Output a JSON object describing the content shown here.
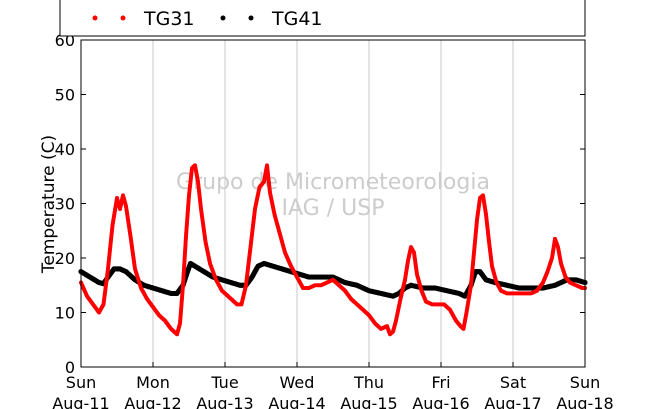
{
  "chart_data": {
    "type": "scatter",
    "ylabel": "Temperature (C)",
    "ylim": [
      0,
      60
    ],
    "yticks": [
      0,
      10,
      20,
      30,
      40,
      50,
      60
    ],
    "xlim": [
      "2013-08-11",
      "2013-08-18"
    ],
    "xticks": [
      {
        "date": "2013-08-11",
        "day": "Sun",
        "label": "Aug-11"
      },
      {
        "date": "2013-08-12",
        "day": "Mon",
        "label": "Aug-12"
      },
      {
        "date": "2013-08-13",
        "day": "Tue",
        "label": "Aug-13"
      },
      {
        "date": "2013-08-14",
        "day": "Wed",
        "label": "Aug-14"
      },
      {
        "date": "2013-08-15",
        "day": "Thu",
        "label": "Aug-15"
      },
      {
        "date": "2013-08-16",
        "day": "Fri",
        "label": "Aug-16"
      },
      {
        "date": "2013-08-17",
        "day": "Sat",
        "label": "Aug-17"
      },
      {
        "date": "2013-08-18",
        "day": "Sun",
        "label": "Aug-18"
      }
    ],
    "grid": "vertical",
    "legend_position": "top",
    "watermark": [
      "Grupo de Micrometeorologia",
      "IAG / USP"
    ],
    "series": [
      {
        "name": "TG31",
        "color": "#ff0000",
        "points": [
          [
            "2013-08-11T00:00",
            15.5
          ],
          [
            "2013-08-11T02:00",
            13.0
          ],
          [
            "2013-08-11T04:00",
            11.5
          ],
          [
            "2013-08-11T06:00",
            10.0
          ],
          [
            "2013-08-11T07:30",
            11.5
          ],
          [
            "2013-08-11T09:00",
            18.0
          ],
          [
            "2013-08-11T10:30",
            26.0
          ],
          [
            "2013-08-11T12:00",
            31.0
          ],
          [
            "2013-08-11T13:00",
            29.0
          ],
          [
            "2013-08-11T14:00",
            31.5
          ],
          [
            "2013-08-11T15:00",
            29.5
          ],
          [
            "2013-08-11T16:30",
            24.0
          ],
          [
            "2013-08-11T18:00",
            18.0
          ],
          [
            "2013-08-11T20:00",
            14.5
          ],
          [
            "2013-08-11T22:00",
            12.5
          ],
          [
            "2013-08-12T00:00",
            11.0
          ],
          [
            "2013-08-12T02:00",
            9.5
          ],
          [
            "2013-08-12T04:00",
            8.5
          ],
          [
            "2013-08-12T06:00",
            7.0
          ],
          [
            "2013-08-12T08:00",
            6.0
          ],
          [
            "2013-08-12T09:00",
            8.0
          ],
          [
            "2013-08-12T10:00",
            15.0
          ],
          [
            "2013-08-12T11:00",
            24.0
          ],
          [
            "2013-08-12T12:00",
            31.5
          ],
          [
            "2013-08-12T13:00",
            36.5
          ],
          [
            "2013-08-12T14:00",
            37.0
          ],
          [
            "2013-08-12T15:00",
            34.0
          ],
          [
            "2013-08-12T16:00",
            29.0
          ],
          [
            "2013-08-12T17:30",
            23.0
          ],
          [
            "2013-08-12T19:00",
            19.0
          ],
          [
            "2013-08-12T21:00",
            16.0
          ],
          [
            "2013-08-12T23:00",
            14.0
          ],
          [
            "2013-08-13T02:00",
            12.5
          ],
          [
            "2013-08-13T04:00",
            11.5
          ],
          [
            "2013-08-13T05:30",
            11.5
          ],
          [
            "2013-08-13T07:00",
            15.0
          ],
          [
            "2013-08-13T08:30",
            22.0
          ],
          [
            "2013-08-13T10:00",
            29.0
          ],
          [
            "2013-08-13T11:30",
            33.0
          ],
          [
            "2013-08-13T13:00",
            34.0
          ],
          [
            "2013-08-13T14:00",
            37.0
          ],
          [
            "2013-08-13T15:00",
            32.0
          ],
          [
            "2013-08-13T16:30",
            28.0
          ],
          [
            "2013-08-13T18:00",
            25.0
          ],
          [
            "2013-08-13T20:00",
            21.0
          ],
          [
            "2013-08-13T22:00",
            18.5
          ],
          [
            "2013-08-14T00:00",
            16.5
          ],
          [
            "2013-08-14T02:00",
            14.5
          ],
          [
            "2013-08-14T04:00",
            14.5
          ],
          [
            "2013-08-14T06:00",
            15.0
          ],
          [
            "2013-08-14T08:00",
            15.0
          ],
          [
            "2013-08-14T10:00",
            15.5
          ],
          [
            "2013-08-14T12:00",
            16.0
          ],
          [
            "2013-08-14T14:00",
            15.0
          ],
          [
            "2013-08-14T16:00",
            14.0
          ],
          [
            "2013-08-14T18:00",
            12.5
          ],
          [
            "2013-08-14T20:00",
            11.5
          ],
          [
            "2013-08-14T22:00",
            10.5
          ],
          [
            "2013-08-15T00:00",
            9.5
          ],
          [
            "2013-08-15T02:00",
            8.0
          ],
          [
            "2013-08-15T04:00",
            7.0
          ],
          [
            "2013-08-15T06:00",
            7.5
          ],
          [
            "2013-08-15T07:00",
            6.0
          ],
          [
            "2013-08-15T08:00",
            6.5
          ],
          [
            "2013-08-15T09:00",
            8.5
          ],
          [
            "2013-08-15T10:30",
            12.5
          ],
          [
            "2013-08-15T12:00",
            16.0
          ],
          [
            "2013-08-15T13:00",
            19.5
          ],
          [
            "2013-08-15T14:00",
            22.0
          ],
          [
            "2013-08-15T15:00",
            21.0
          ],
          [
            "2013-08-15T16:00",
            17.0
          ],
          [
            "2013-08-15T17:30",
            14.0
          ],
          [
            "2013-08-15T19:00",
            12.0
          ],
          [
            "2013-08-15T21:00",
            11.5
          ],
          [
            "2013-08-15T23:00",
            11.5
          ],
          [
            "2013-08-16T01:00",
            11.5
          ],
          [
            "2013-08-16T03:00",
            10.5
          ],
          [
            "2013-08-16T05:00",
            8.5
          ],
          [
            "2013-08-16T06:30",
            7.5
          ],
          [
            "2013-08-16T07:30",
            7.0
          ],
          [
            "2013-08-16T08:30",
            10.0
          ],
          [
            "2013-08-16T10:00",
            15.0
          ],
          [
            "2013-08-16T11:00",
            21.0
          ],
          [
            "2013-08-16T12:00",
            27.0
          ],
          [
            "2013-08-16T13:00",
            31.0
          ],
          [
            "2013-08-16T14:00",
            31.5
          ],
          [
            "2013-08-16T15:00",
            28.0
          ],
          [
            "2013-08-16T16:00",
            23.0
          ],
          [
            "2013-08-16T17:00",
            18.5
          ],
          [
            "2013-08-16T18:30",
            15.5
          ],
          [
            "2013-08-16T20:00",
            14.0
          ],
          [
            "2013-08-16T22:00",
            13.5
          ],
          [
            "2013-08-17T00:00",
            13.5
          ],
          [
            "2013-08-17T02:00",
            13.5
          ],
          [
            "2013-08-17T04:00",
            13.5
          ],
          [
            "2013-08-17T06:00",
            13.5
          ],
          [
            "2013-08-17T08:00",
            14.0
          ],
          [
            "2013-08-17T10:00",
            15.5
          ],
          [
            "2013-08-17T11:30",
            17.5
          ],
          [
            "2013-08-17T13:00",
            20.0
          ],
          [
            "2013-08-17T14:00",
            23.5
          ],
          [
            "2013-08-17T15:00",
            22.0
          ],
          [
            "2013-08-17T16:00",
            19.0
          ],
          [
            "2013-08-17T17:30",
            16.5
          ],
          [
            "2013-08-17T19:00",
            15.5
          ],
          [
            "2013-08-17T21:00",
            15.0
          ],
          [
            "2013-08-17T23:00",
            14.5
          ],
          [
            "2013-08-18T00:00",
            14.5
          ]
        ]
      },
      {
        "name": "TG41",
        "color": "#000000",
        "points": [
          [
            "2013-08-11T00:00",
            17.5
          ],
          [
            "2013-08-11T03:00",
            16.5
          ],
          [
            "2013-08-11T06:00",
            15.5
          ],
          [
            "2013-08-11T07:30",
            15.3
          ],
          [
            "2013-08-11T09:00",
            16.5
          ],
          [
            "2013-08-11T11:00",
            18.0
          ],
          [
            "2013-08-11T13:00",
            18.0
          ],
          [
            "2013-08-11T15:00",
            17.5
          ],
          [
            "2013-08-11T18:00",
            16.0
          ],
          [
            "2013-08-11T21:00",
            15.0
          ],
          [
            "2013-08-12T00:00",
            14.5
          ],
          [
            "2013-08-12T03:00",
            14.0
          ],
          [
            "2013-08-12T06:00",
            13.5
          ],
          [
            "2013-08-12T08:00",
            13.5
          ],
          [
            "2013-08-12T10:00",
            15.0
          ],
          [
            "2013-08-12T11:30",
            17.5
          ],
          [
            "2013-08-12T12:30",
            19.0
          ],
          [
            "2013-08-12T14:00",
            18.5
          ],
          [
            "2013-08-12T17:00",
            17.5
          ],
          [
            "2013-08-12T20:00",
            16.5
          ],
          [
            "2013-08-12T23:00",
            16.0
          ],
          [
            "2013-08-13T02:00",
            15.5
          ],
          [
            "2013-08-13T05:00",
            15.0
          ],
          [
            "2013-08-13T07:00",
            15.0
          ],
          [
            "2013-08-13T09:00",
            16.5
          ],
          [
            "2013-08-13T11:00",
            18.5
          ],
          [
            "2013-08-13T13:00",
            19.0
          ],
          [
            "2013-08-13T16:00",
            18.5
          ],
          [
            "2013-08-13T19:00",
            18.0
          ],
          [
            "2013-08-13T22:00",
            17.5
          ],
          [
            "2013-08-14T01:00",
            17.0
          ],
          [
            "2013-08-14T04:00",
            16.5
          ],
          [
            "2013-08-14T08:00",
            16.5
          ],
          [
            "2013-08-14T12:00",
            16.5
          ],
          [
            "2013-08-14T16:00",
            15.5
          ],
          [
            "2013-08-14T20:00",
            15.0
          ],
          [
            "2013-08-15T00:00",
            14.0
          ],
          [
            "2013-08-15T04:00",
            13.5
          ],
          [
            "2013-08-15T08:00",
            13.0
          ],
          [
            "2013-08-15T10:00",
            13.5
          ],
          [
            "2013-08-15T12:00",
            14.5
          ],
          [
            "2013-08-15T14:00",
            15.0
          ],
          [
            "2013-08-15T18:00",
            14.5
          ],
          [
            "2013-08-15T22:00",
            14.5
          ],
          [
            "2013-08-16T02:00",
            14.0
          ],
          [
            "2013-08-16T06:00",
            13.5
          ],
          [
            "2013-08-16T08:00",
            13.0
          ],
          [
            "2013-08-16T10:00",
            15.0
          ],
          [
            "2013-08-16T11:30",
            17.5
          ],
          [
            "2013-08-16T13:00",
            17.5
          ],
          [
            "2013-08-16T15:00",
            16.0
          ],
          [
            "2013-08-16T18:00",
            15.5
          ],
          [
            "2013-08-16T22:00",
            15.0
          ],
          [
            "2013-08-17T02:00",
            14.5
          ],
          [
            "2013-08-17T06:00",
            14.5
          ],
          [
            "2013-08-17T10:00",
            14.5
          ],
          [
            "2013-08-17T14:00",
            15.0
          ],
          [
            "2013-08-17T16:00",
            15.5
          ],
          [
            "2013-08-17T18:00",
            16.0
          ],
          [
            "2013-08-17T21:00",
            16.0
          ],
          [
            "2013-08-18T00:00",
            15.5
          ]
        ]
      }
    ]
  }
}
